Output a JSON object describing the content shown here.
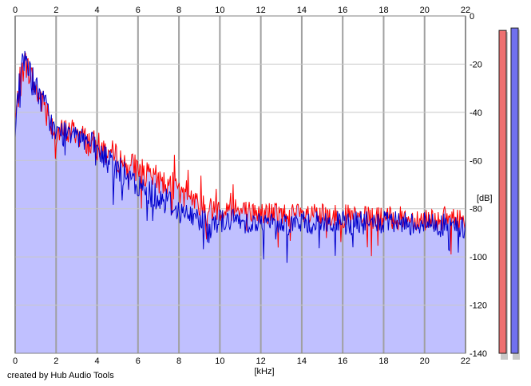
{
  "credit": "created by Hub Audio Tools",
  "chart_data": {
    "type": "area",
    "xlabel": "[kHz]",
    "ylabel": "[dB]",
    "xlim": [
      0,
      22
    ],
    "ylim": [
      -140,
      0
    ],
    "x_ticks": [
      0,
      2,
      4,
      6,
      8,
      10,
      12,
      14,
      16,
      18,
      20,
      22
    ],
    "y_ticks": [
      0,
      -20,
      -40,
      -60,
      -80,
      -100,
      -120,
      -140
    ],
    "grid": true,
    "colors": {
      "series_red": "#ff0000",
      "series_blue": "#0000cc",
      "fill": "#c0c0ff",
      "grid": "#c8c8c8",
      "grid_major": "#a0a0a0",
      "meter_left": "#ee7070",
      "meter_right": "#7070ee"
    },
    "series": [
      {
        "color": "red",
        "x": [
          0,
          0.25,
          0.5,
          0.75,
          1,
          1.5,
          2,
          2.5,
          3,
          3.5,
          4,
          4.5,
          5,
          5.5,
          6,
          6.5,
          7,
          7.5,
          8,
          8.5,
          9,
          9.5,
          10,
          11,
          12,
          13,
          14,
          15,
          16,
          17,
          18,
          19,
          20,
          21,
          22
        ],
        "values": [
          -44,
          -26,
          -19,
          -24,
          -31,
          -38,
          -49,
          -48,
          -48,
          -52,
          -54,
          -56,
          -59,
          -62,
          -63,
          -67,
          -68,
          -70,
          -74,
          -77,
          -78,
          -80,
          -80,
          -81,
          -82,
          -82,
          -83,
          -83,
          -83,
          -84,
          -84,
          -84,
          -84,
          -84,
          -85
        ]
      },
      {
        "color": "blue",
        "x": [
          0,
          0.25,
          0.5,
          0.75,
          1,
          1.5,
          2,
          2.5,
          3,
          3.5,
          4,
          4.5,
          5,
          5.5,
          6,
          6.5,
          7,
          7.5,
          8,
          8.5,
          9,
          9.5,
          10,
          11,
          12,
          13,
          14,
          15,
          16,
          17,
          18,
          19,
          20,
          21,
          22
        ],
        "values": [
          -45,
          -24,
          -17,
          -22,
          -30,
          -38,
          -50,
          -48,
          -46,
          -52,
          -56,
          -60,
          -63,
          -68,
          -71,
          -73,
          -75,
          -77,
          -81,
          -83,
          -84,
          -85,
          -85,
          -85,
          -86,
          -86,
          -86,
          -86,
          -86,
          -86,
          -86,
          -86,
          -86,
          -87,
          -88
        ]
      }
    ],
    "meters": [
      {
        "color": "red",
        "value": -6
      },
      {
        "color": "blue",
        "value": -5
      }
    ]
  }
}
